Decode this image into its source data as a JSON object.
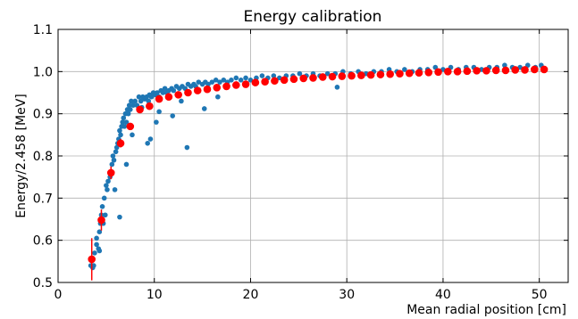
{
  "chart_data": {
    "type": "scatter",
    "title": "Energy calibration",
    "xlabel": "Mean radial position [cm]",
    "ylabel": "Energy/2.458 [MeV]",
    "xlim": [
      0,
      53
    ],
    "ylim": [
      0.5,
      1.1
    ],
    "x_ticks": [
      0,
      10,
      20,
      30,
      40,
      50
    ],
    "y_ticks": [
      0.5,
      0.6,
      0.7,
      0.8,
      0.9,
      1.0,
      1.1
    ],
    "x_tick_labels": [
      "0",
      "10",
      "20",
      "30",
      "40",
      "50"
    ],
    "y_tick_labels": [
      "0.5",
      "0.6",
      "0.7",
      "0.8",
      "0.9",
      "1.0",
      "1.1"
    ],
    "grid": true,
    "colors": {
      "scatter": "#1f77b4",
      "mean": "#ff0000",
      "errorbar": "#ff0000"
    },
    "series": [
      {
        "kind": "scatter",
        "description": "blue scatter of individual events",
        "x": [
          3.4,
          3.6,
          3.8,
          4.0,
          4.0,
          4.2,
          4.3,
          4.4,
          4.5,
          4.6,
          4.7,
          4.8,
          4.9,
          5.0,
          5.1,
          5.2,
          5.4,
          5.5,
          5.6,
          5.7,
          5.8,
          6.0,
          6.1,
          6.2,
          6.3,
          6.4,
          6.5,
          6.6,
          6.7,
          6.8,
          6.9,
          7.0,
          7.1,
          7.2,
          7.3,
          7.4,
          7.5,
          7.6,
          7.8,
          8.0,
          8.2,
          8.4,
          8.6,
          8.8,
          9.0,
          9.2,
          9.4,
          9.5,
          9.7,
          9.9,
          10.1,
          10.3,
          10.5,
          10.7,
          10.9,
          11.1,
          11.3,
          11.5,
          11.8,
          12.0,
          12.3,
          12.6,
          12.9,
          13.2,
          13.5,
          13.8,
          14.1,
          14.3,
          14.6,
          15.0,
          15.3,
          15.6,
          16.0,
          16.4,
          16.8,
          17.2,
          17.6,
          18.0,
          18.5,
          19.0,
          19.5,
          20.0,
          20.6,
          21.2,
          21.8,
          22.4,
          23.0,
          23.7,
          24.4,
          25.1,
          25.8,
          26.5,
          27.2,
          28.0,
          28.8,
          29.0,
          29.6,
          30.4,
          31.2,
          32.0,
          32.8,
          33.6,
          34.4,
          35.2,
          36.0,
          36.8,
          37.6,
          38.4,
          39.2,
          40.0,
          40.8,
          41.6,
          42.4,
          43.2,
          44.0,
          44.8,
          45.6,
          46.4,
          47.2,
          48.0,
          48.8,
          49.6,
          50.2,
          6.4,
          7.1,
          9.6,
          10.5,
          11.9,
          15.2,
          3.7,
          4.3,
          5.9,
          7.7,
          8.7,
          9.3,
          10.2,
          12.8,
          16.6,
          13.4
        ],
        "y": [
          0.54,
          0.535,
          0.57,
          0.59,
          0.605,
          0.58,
          0.62,
          0.64,
          0.66,
          0.68,
          0.64,
          0.7,
          0.66,
          0.73,
          0.72,
          0.74,
          0.75,
          0.76,
          0.78,
          0.8,
          0.79,
          0.81,
          0.82,
          0.83,
          0.84,
          0.86,
          0.85,
          0.87,
          0.88,
          0.89,
          0.87,
          0.9,
          0.88,
          0.91,
          0.9,
          0.92,
          0.91,
          0.93,
          0.92,
          0.93,
          0.92,
          0.94,
          0.93,
          0.94,
          0.935,
          0.94,
          0.93,
          0.945,
          0.94,
          0.95,
          0.945,
          0.95,
          0.94,
          0.955,
          0.95,
          0.96,
          0.95,
          0.955,
          0.96,
          0.955,
          0.965,
          0.96,
          0.965,
          0.96,
          0.97,
          0.965,
          0.97,
          0.965,
          0.975,
          0.97,
          0.975,
          0.97,
          0.975,
          0.98,
          0.975,
          0.98,
          0.975,
          0.98,
          0.985,
          0.98,
          0.985,
          0.98,
          0.985,
          0.99,
          0.985,
          0.99,
          0.985,
          0.99,
          0.99,
          0.995,
          0.99,
          0.995,
          0.99,
          0.995,
          0.995,
          0.963,
          1.0,
          0.995,
          1.0,
          0.995,
          1.0,
          1.0,
          1.005,
          1.0,
          1.005,
          1.0,
          1.005,
          1.005,
          1.01,
          1.005,
          1.01,
          1.005,
          1.01,
          1.01,
          1.005,
          1.01,
          1.01,
          1.015,
          1.01,
          1.01,
          1.015,
          1.01,
          1.015,
          0.655,
          0.78,
          0.84,
          0.905,
          0.895,
          0.912,
          0.54,
          0.575,
          0.72,
          0.85,
          0.915,
          0.83,
          0.88,
          0.93,
          0.94,
          0.82
        ]
      },
      {
        "kind": "mean",
        "description": "red binned means with error bars",
        "x": [
          3.5,
          4.5,
          5.5,
          6.5,
          7.5,
          8.5,
          9.5,
          10.5,
          11.5,
          12.5,
          13.5,
          14.5,
          15.5,
          16.5,
          17.5,
          18.5,
          19.5,
          20.5,
          21.5,
          22.5,
          23.5,
          24.5,
          25.5,
          26.5,
          27.5,
          28.5,
          29.5,
          30.5,
          31.5,
          32.5,
          33.5,
          34.5,
          35.5,
          36.5,
          37.5,
          38.5,
          39.5,
          40.5,
          41.5,
          42.5,
          43.5,
          44.5,
          45.5,
          46.5,
          47.5,
          48.5,
          49.5,
          50.5
        ],
        "y": [
          0.555,
          0.648,
          0.76,
          0.83,
          0.87,
          0.91,
          0.918,
          0.935,
          0.94,
          0.945,
          0.95,
          0.955,
          0.958,
          0.962,
          0.965,
          0.968,
          0.97,
          0.974,
          0.976,
          0.978,
          0.98,
          0.982,
          0.984,
          0.985,
          0.987,
          0.988,
          0.989,
          0.99,
          0.991,
          0.992,
          0.993,
          0.994,
          0.995,
          0.996,
          0.997,
          0.998,
          0.999,
          1.0,
          1.0,
          1.001,
          1.002,
          1.002,
          1.003,
          1.003,
          1.004,
          1.004,
          1.005,
          1.005
        ],
        "err": [
          0.05,
          0.025,
          0.015,
          0.01,
          0.008,
          0.006,
          0.005,
          0.004,
          0.004,
          0.003,
          0.003,
          0.003,
          0.003,
          0.002,
          0.002,
          0.002,
          0.002,
          0.002,
          0.002,
          0.002,
          0.002,
          0.002,
          0.002,
          0.002,
          0.002,
          0.002,
          0.002,
          0.002,
          0.002,
          0.002,
          0.002,
          0.002,
          0.002,
          0.002,
          0.002,
          0.002,
          0.002,
          0.002,
          0.002,
          0.002,
          0.002,
          0.002,
          0.002,
          0.002,
          0.002,
          0.002,
          0.002,
          0.002
        ]
      }
    ]
  }
}
